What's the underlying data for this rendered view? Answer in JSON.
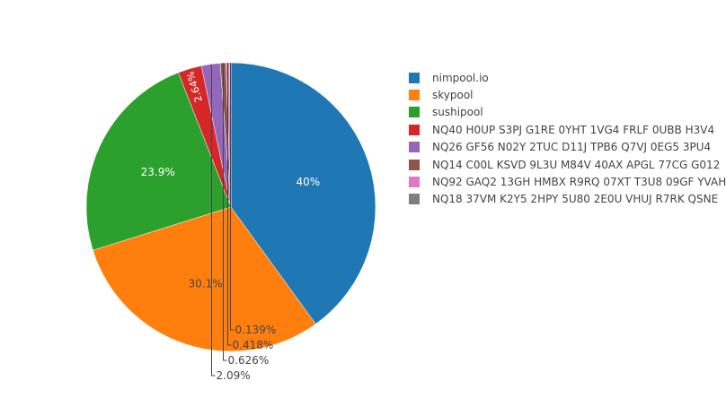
{
  "chart_data": {
    "type": "pie",
    "slices": [
      {
        "label": "nimpool.io",
        "percent": 40,
        "text": "40%",
        "color": "#1f77b4"
      },
      {
        "label": "skypool",
        "percent": 30.1,
        "text": "30.1%",
        "color": "#ff7f0e"
      },
      {
        "label": "sushipool",
        "percent": 23.9,
        "text": "23.9%",
        "color": "#2ca02c"
      },
      {
        "label": "NQ40 H0UP S3PJ G1RE 0YHT 1VG4 FRLF 0UBB H3V4",
        "percent": 2.64,
        "text": "2.64%",
        "color": "#d62728"
      },
      {
        "label": "NQ26 GF56 N02Y 2TUC D11J TPB6 Q7VJ 0EG5 3PU4",
        "percent": 2.09,
        "text": "2.09%",
        "color": "#9467bd"
      },
      {
        "label": "NQ14 C00L KSVD 9L3U M84V 40AX APGL 77CG G012",
        "percent": 0.626,
        "text": "0.626%",
        "color": "#8c564b"
      },
      {
        "label": "NQ92 GAQ2 13GH HMBX R9RQ 07XT T3U8 09GF YVAH",
        "percent": 0.418,
        "text": "0.418%",
        "color": "#e377c2"
      },
      {
        "label": "NQ18 37VM K2Y5 2HPY 5U80 2E0U VHUJ R7RK QSNE",
        "percent": 0.139,
        "text": "0.139%",
        "color": "#7f7f7f"
      }
    ],
    "legend_position": "right"
  }
}
